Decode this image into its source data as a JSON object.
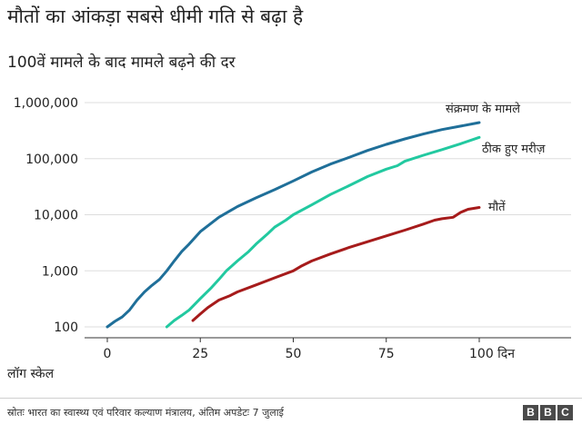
{
  "title": "मौतों का आंकड़ा सबसे धीमी गति से बढ़ा है",
  "subtitle": "100वें मामले के बाद मामले बढ़ने की दर",
  "scale_note": "लॉग स्केल",
  "source": "स्रोतः भारत का स्वास्थ्य एवं परिवार कल्याण मंत्रालय, अंतिम अपडेटः 7 जुलाई",
  "logo": [
    "B",
    "B",
    "C"
  ],
  "chart_data": {
    "type": "line",
    "yscale": "log",
    "ylim": [
      100,
      1000000
    ],
    "xlim": [
      0,
      120
    ],
    "grid": true,
    "xticks": [
      0,
      25,
      50,
      75,
      100
    ],
    "xtick_labels": [
      "0",
      "25",
      "50",
      "75",
      "100 दिन"
    ],
    "yticks": [
      100,
      1000,
      10000,
      100000,
      1000000
    ],
    "ytick_labels": [
      "100",
      "1,000",
      "10,000",
      "100,000",
      "1,000,000"
    ],
    "series": [
      {
        "name": "संक्रमण के मामले",
        "color": "#1f6f99",
        "x": [
          0,
          2,
          4,
          6,
          8,
          10,
          12,
          14,
          16,
          18,
          20,
          22,
          25,
          30,
          35,
          40,
          45,
          50,
          55,
          60,
          65,
          70,
          75,
          80,
          85,
          90,
          95,
          100
        ],
        "y": [
          100,
          125,
          150,
          200,
          300,
          420,
          550,
          700,
          1000,
          1500,
          2200,
          3000,
          5000,
          9000,
          14000,
          20000,
          28000,
          40000,
          58000,
          80000,
          105000,
          140000,
          180000,
          225000,
          275000,
          330000,
          380000,
          440000
        ]
      },
      {
        "name": "ठीक हुए मरीज़",
        "color": "#22c9a0",
        "x": [
          16,
          18,
          20,
          22,
          25,
          28,
          30,
          32,
          35,
          38,
          40,
          43,
          45,
          48,
          50,
          55,
          60,
          65,
          70,
          75,
          78,
          80,
          85,
          90,
          95,
          100
        ],
        "y": [
          100,
          130,
          160,
          200,
          320,
          500,
          700,
          1000,
          1500,
          2200,
          3000,
          4500,
          6000,
          8000,
          10000,
          15000,
          23000,
          33000,
          48000,
          65000,
          75000,
          90000,
          115000,
          145000,
          185000,
          240000
        ]
      },
      {
        "name": "मौतें",
        "color": "#a61b1b",
        "x": [
          23,
          25,
          27,
          30,
          33,
          35,
          40,
          45,
          50,
          52,
          55,
          60,
          65,
          70,
          75,
          80,
          85,
          88,
          90,
          93,
          95,
          97,
          100
        ],
        "y": [
          130,
          170,
          220,
          300,
          360,
          420,
          560,
          750,
          1000,
          1200,
          1500,
          2000,
          2600,
          3300,
          4200,
          5300,
          6800,
          8000,
          8500,
          9000,
          11000,
          12500,
          13500
        ]
      }
    ]
  }
}
